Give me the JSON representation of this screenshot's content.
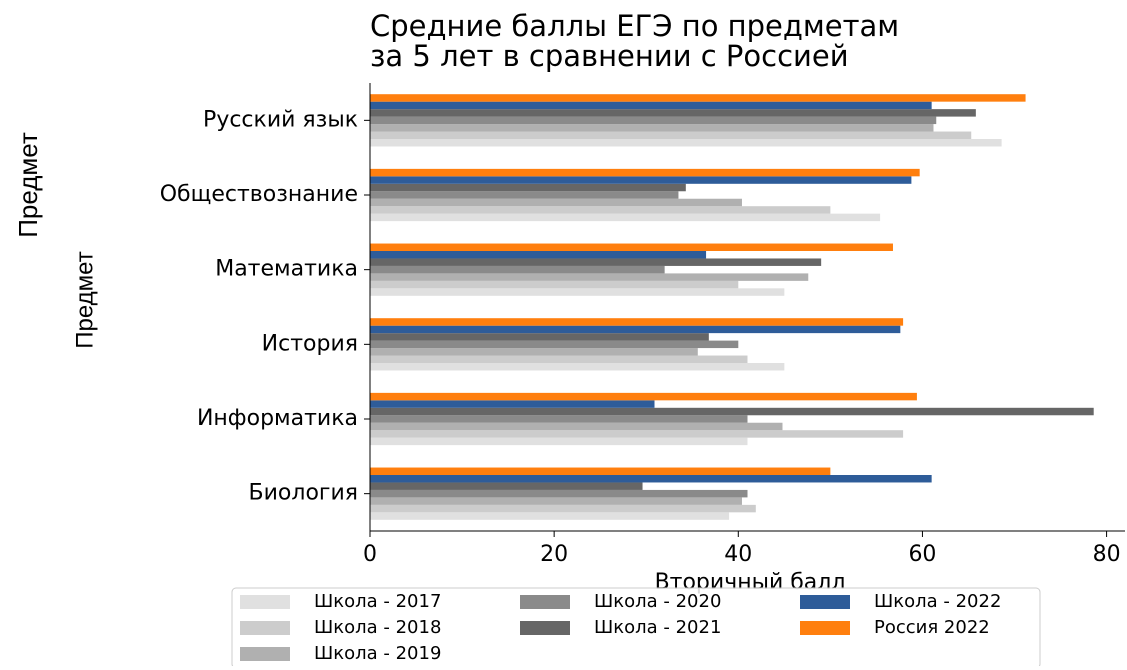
{
  "chart_data": {
    "type": "barh",
    "title": [
      "Средние баллы ЕГЭ по предметам",
      "за 5 лет в сравнении с Россией"
    ],
    "xlabel": "Вторичный балл",
    "ylabel": "Предмет",
    "categories": [
      "Русский язык",
      "Обществознание",
      "Математика",
      "История",
      "Информатика",
      "Биология"
    ],
    "series": [
      {
        "name": "Школа - 2017",
        "color": "#e0e0e0",
        "values": [
          68.6,
          55.4,
          45,
          45,
          41,
          39
        ]
      },
      {
        "name": "Школа - 2018",
        "color": "#cccccc",
        "values": [
          65.3,
          50,
          40,
          41,
          57.9,
          41.9
        ]
      },
      {
        "name": "Школа - 2019",
        "color": "#b0b0b0",
        "values": [
          61.2,
          40.4,
          47.6,
          35.6,
          44.8,
          40.4
        ]
      },
      {
        "name": "Школа - 2020",
        "color": "#8a8a8a",
        "values": [
          61.5,
          33.5,
          32,
          40,
          41,
          41
        ]
      },
      {
        "name": "Школа - 2021",
        "color": "#666666",
        "values": [
          65.8,
          34.3,
          49,
          36.8,
          78.6,
          29.6
        ]
      },
      {
        "name": "Школа - 2022",
        "color": "#2e5c99",
        "values": [
          61,
          58.8,
          36.5,
          57.6,
          30.9,
          61
        ]
      },
      {
        "name": "Россия 2022",
        "color": "#ff7f0e",
        "values": [
          71.2,
          59.7,
          56.8,
          57.9,
          59.4,
          50
        ]
      }
    ],
    "xlim": [
      0,
      82
    ],
    "xticks": [
      0,
      20,
      40,
      60,
      80
    ]
  }
}
